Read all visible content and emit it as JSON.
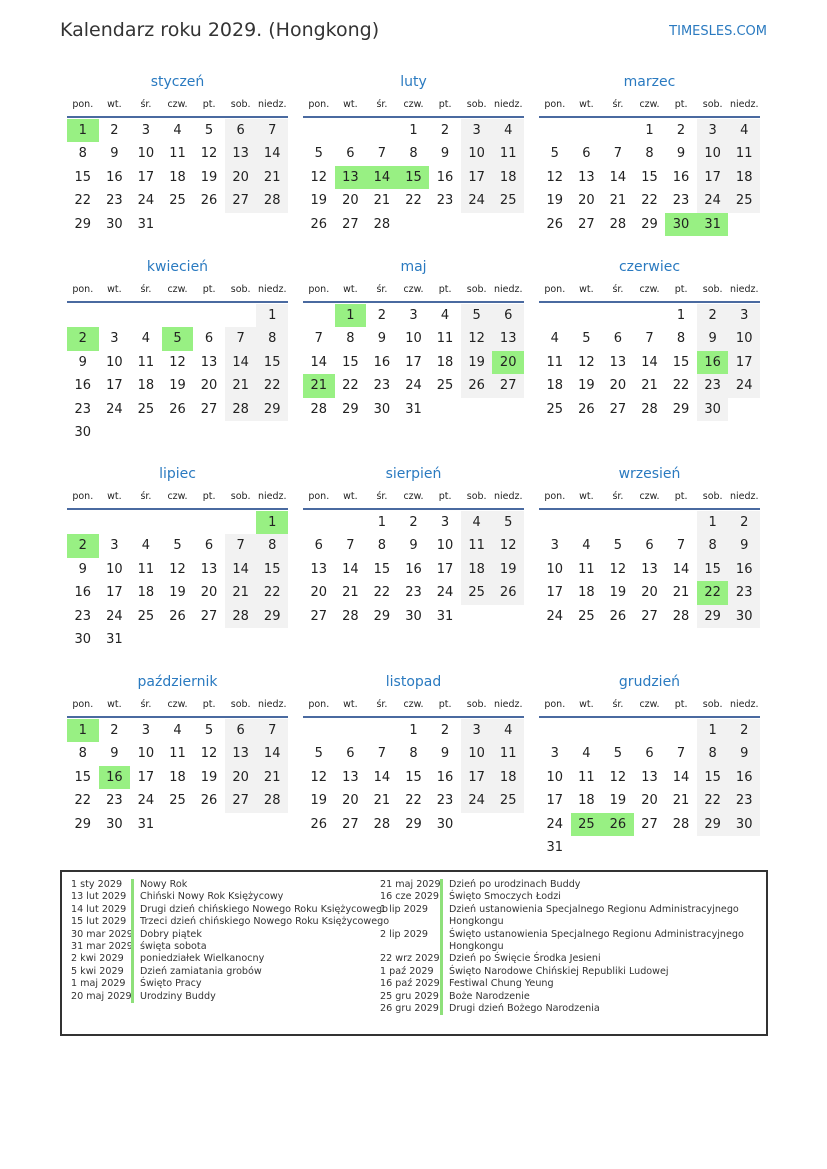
{
  "header": {
    "title": "Kalendarz roku 2029. (Hongkong)",
    "brand": "TIMESLES.COM"
  },
  "weekdays": [
    "pon.",
    "wt.",
    "śr.",
    "czw.",
    "pt.",
    "sob.",
    "niedz."
  ],
  "colors": {
    "holiday": "#98f083",
    "weekend": "#f2f2f2",
    "accent": "#2a7ac0"
  },
  "months": [
    {
      "name": "styczeń",
      "offset": 0,
      "days": 31,
      "holidays": [
        1
      ]
    },
    {
      "name": "luty",
      "offset": 3,
      "days": 28,
      "holidays": [
        13,
        14,
        15
      ]
    },
    {
      "name": "marzec",
      "offset": 3,
      "days": 31,
      "holidays": [
        30,
        31
      ]
    },
    {
      "name": "kwiecień",
      "offset": 6,
      "days": 30,
      "holidays": [
        2,
        5
      ]
    },
    {
      "name": "maj",
      "offset": 1,
      "days": 31,
      "holidays": [
        1,
        20,
        21
      ]
    },
    {
      "name": "czerwiec",
      "offset": 4,
      "days": 30,
      "holidays": [
        16
      ]
    },
    {
      "name": "lipiec",
      "offset": 6,
      "days": 31,
      "holidays": [
        1,
        2
      ]
    },
    {
      "name": "sierpień",
      "offset": 2,
      "days": 31,
      "holidays": []
    },
    {
      "name": "wrzesień",
      "offset": 5,
      "days": 30,
      "holidays": [
        22
      ]
    },
    {
      "name": "październik",
      "offset": 0,
      "days": 31,
      "holidays": [
        1,
        16
      ]
    },
    {
      "name": "listopad",
      "offset": 3,
      "days": 30,
      "holidays": []
    },
    {
      "name": "grudzień",
      "offset": 5,
      "days": 31,
      "holidays": [
        25,
        26
      ]
    }
  ],
  "legend": {
    "left": [
      {
        "date": "1 sty 2029",
        "name": "Nowy Rok"
      },
      {
        "date": "13 lut 2029",
        "name": "Chiński Nowy Rok Księżycowy"
      },
      {
        "date": "14 lut 2029",
        "name": "Drugi dzień chińskiego Nowego Roku Księżycowego"
      },
      {
        "date": "15 lut 2029",
        "name": "Trzeci dzień chińskiego Nowego Roku Księżycowego"
      },
      {
        "date": "30 mar 2029",
        "name": "Dobry piątek"
      },
      {
        "date": "31 mar 2029",
        "name": "święta sobota"
      },
      {
        "date": "2 kwi 2029",
        "name": "poniedziałek Wielkanocny"
      },
      {
        "date": "5 kwi 2029",
        "name": "Dzień zamiatania grobów"
      },
      {
        "date": "1 maj 2029",
        "name": "Święto Pracy"
      },
      {
        "date": "20 maj 2029",
        "name": "Urodziny Buddy"
      }
    ],
    "right": [
      {
        "date": "21 maj 2029",
        "name": "Dzień po urodzinach Buddy"
      },
      {
        "date": "16 cze 2029",
        "name": "Święto Smoczych Łodzi"
      },
      {
        "date": "1 lip 2029",
        "name": "Dzień ustanowienia Specjalnego Regionu Administracyjnego Hongkongu"
      },
      {
        "date": "2 lip 2029",
        "name": "Święto ustanowienia Specjalnego Regionu Administracyjnego Hongkongu"
      },
      {
        "date": "22 wrz 2029",
        "name": "Dzień po Święcie Środka Jesieni"
      },
      {
        "date": "1 paź 2029",
        "name": "Święto Narodowe Chińskiej Republiki Ludowej"
      },
      {
        "date": "16 paź 2029",
        "name": "Festiwal Chung Yeung"
      },
      {
        "date": "25 gru 2029",
        "name": "Boże Narodzenie"
      },
      {
        "date": "26 gru 2029",
        "name": "Drugi dzień Bożego Narodzenia"
      }
    ]
  }
}
